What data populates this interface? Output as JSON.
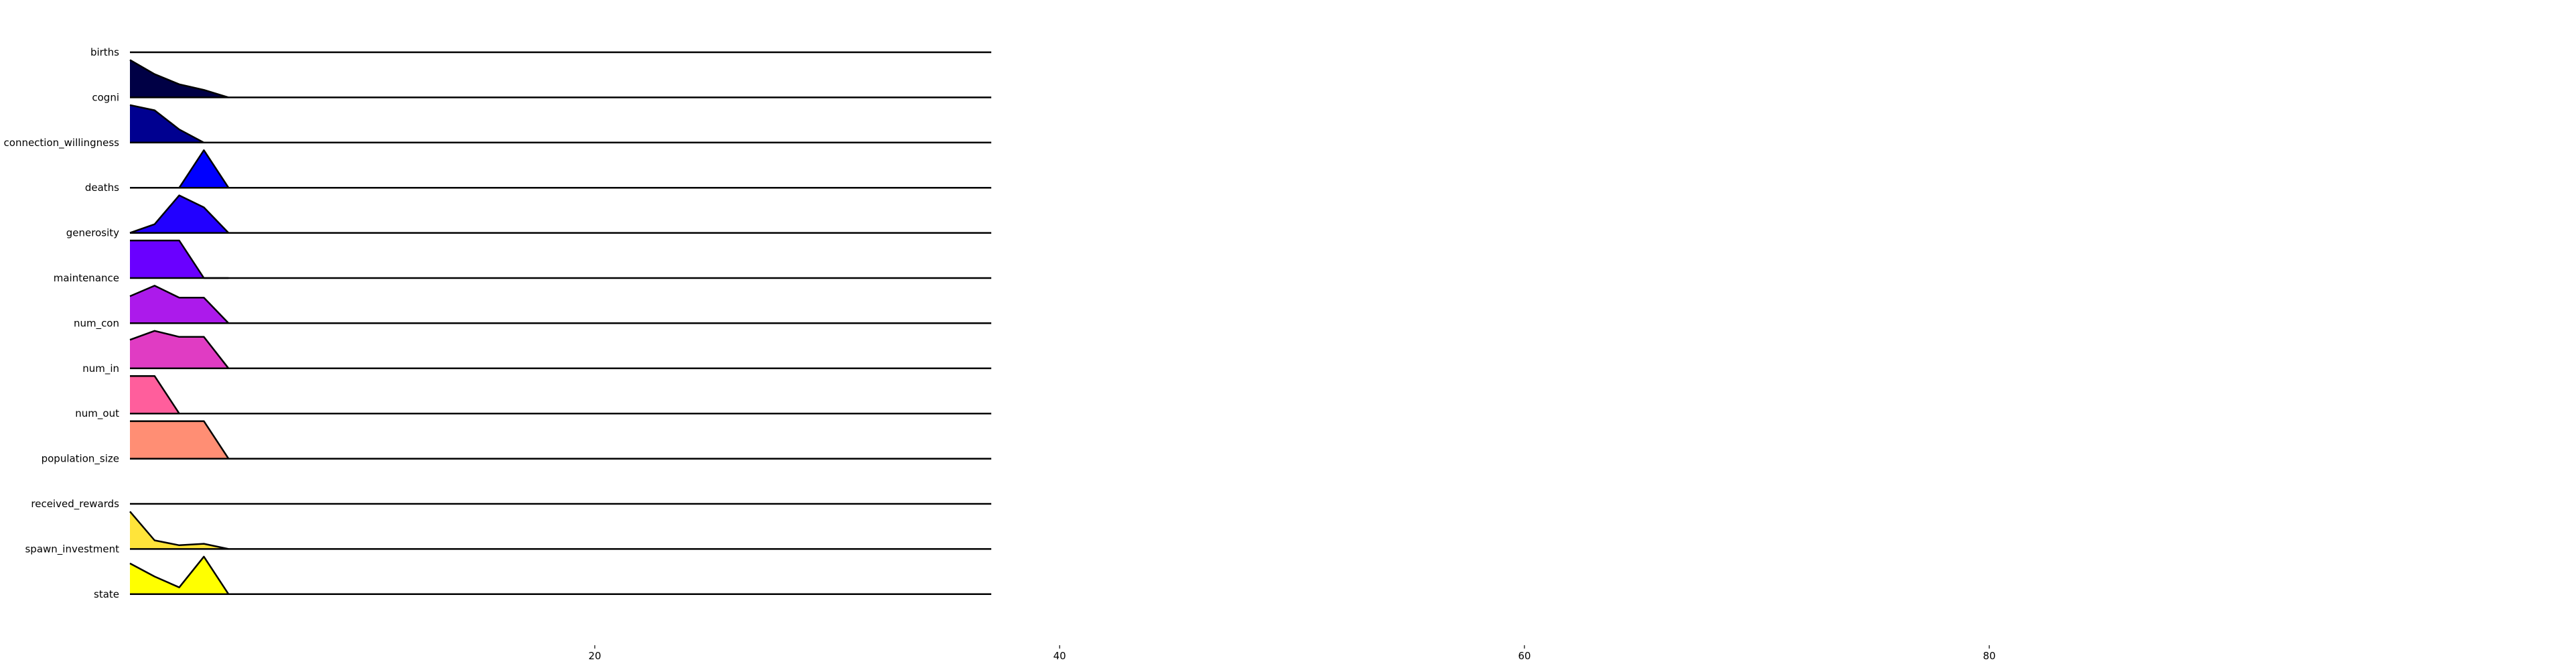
{
  "chart_data": {
    "type": "area",
    "title": "",
    "xlabel": "",
    "ylabel": "",
    "x": [
      0,
      1,
      2,
      3,
      4
    ],
    "x_axis_ticks": [
      "20",
      "40",
      "60",
      "80"
    ],
    "x_tick_values": [
      20,
      40,
      60,
      80
    ],
    "xlim": [
      0,
      100
    ],
    "grid": false,
    "series": [
      {
        "name": "births",
        "color": "#000000",
        "values": [
          0,
          0,
          0,
          0,
          0
        ]
      },
      {
        "name": "cogni",
        "color": "#000045",
        "values": [
          1.0,
          0.62,
          0.35,
          0.2,
          0
        ]
      },
      {
        "name": "connection_willingness",
        "color": "#000090",
        "values": [
          1.0,
          0.86,
          0.35,
          0,
          0
        ]
      },
      {
        "name": "deaths",
        "color": "#0000ff",
        "values": [
          0,
          0,
          0,
          1.0,
          0
        ]
      },
      {
        "name": "generosity",
        "color": "#2200ff",
        "values": [
          0,
          0.23,
          1.0,
          0.68,
          0
        ]
      },
      {
        "name": "maintenance",
        "color": "#6a00ff",
        "values": [
          1.0,
          1.0,
          1.0,
          0,
          0
        ]
      },
      {
        "name": "num_con",
        "color": "#ac1aeb",
        "values": [
          0.72,
          1.0,
          0.68,
          0.68,
          0
        ]
      },
      {
        "name": "num_in",
        "color": "#e03cc3",
        "values": [
          0.76,
          1.0,
          0.84,
          0.84,
          0
        ]
      },
      {
        "name": "num_out",
        "color": "#ff5e9c",
        "values": [
          1.0,
          1.0,
          0,
          0,
          0
        ]
      },
      {
        "name": "population_size",
        "color": "#ff8e74",
        "values": [
          1.0,
          1.0,
          1.0,
          1.0,
          0
        ]
      },
      {
        "name": "received_rewards",
        "color": "#ffc346",
        "values": [
          0,
          0,
          0,
          0,
          0
        ]
      },
      {
        "name": "spawn_investment",
        "color": "#ffe43a",
        "values": [
          1.0,
          0.23,
          0.1,
          0.14,
          0
        ]
      },
      {
        "name": "state",
        "color": "#ffff00",
        "values": [
          0.82,
          0.47,
          0.18,
          1.0,
          0
        ]
      }
    ]
  }
}
